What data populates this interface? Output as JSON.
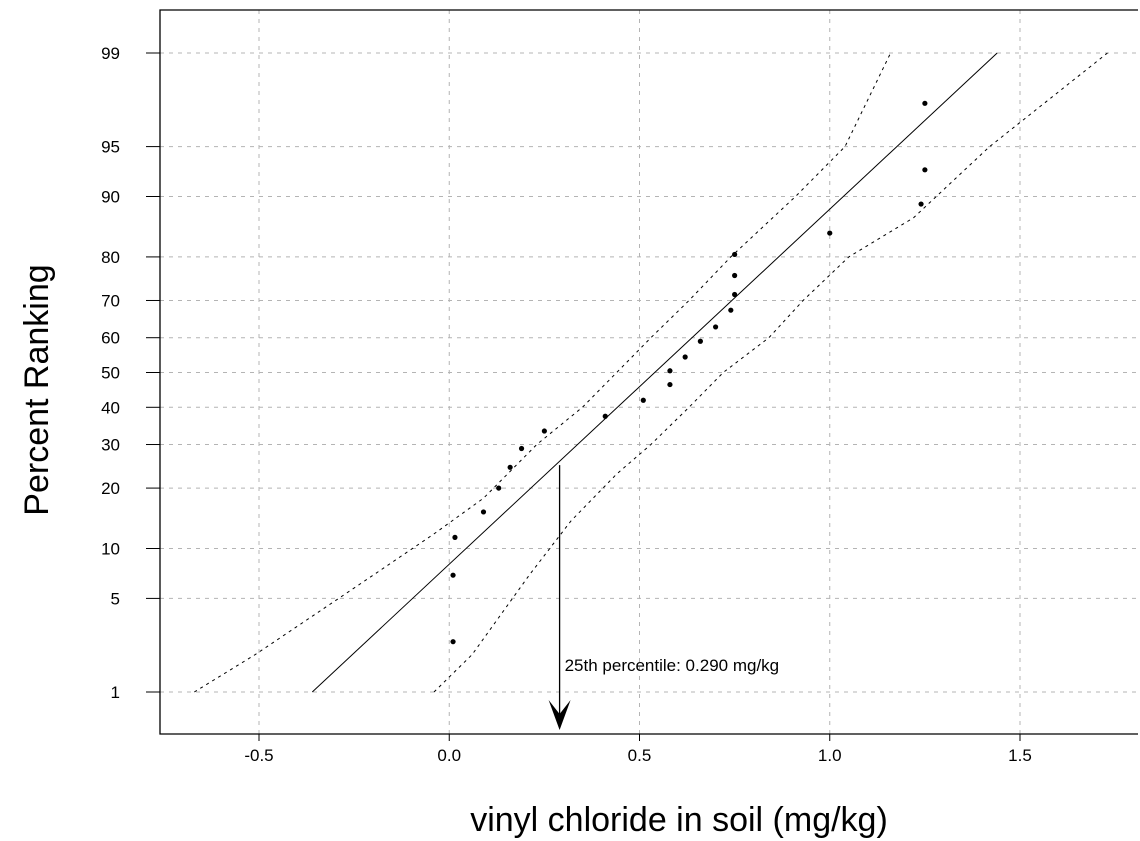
{
  "chart_data": {
    "type": "scatter",
    "title": "",
    "xlabel": "vinyl chloride in soil (mg/kg)",
    "ylabel": "Percent Ranking",
    "x_scale": "linear",
    "y_scale": "normal-probability",
    "xlim": [
      -0.78,
      1.8
    ],
    "ylim": [
      0.5,
      99.5
    ],
    "x_ticks": [
      -0.5,
      0.0,
      0.5,
      1.0,
      1.5
    ],
    "x_tick_labels": [
      "-0.5",
      "0.0",
      "0.5",
      "1.0",
      "1.5"
    ],
    "y_ticks": [
      1,
      5,
      10,
      20,
      30,
      40,
      50,
      60,
      70,
      80,
      90,
      95,
      99
    ],
    "y_tick_labels": [
      "1",
      "5",
      "10",
      "20",
      "30",
      "40",
      "50",
      "60",
      "70",
      "80",
      "90",
      "95",
      "99"
    ],
    "grid": true,
    "points": [
      {
        "x": 0.01,
        "y": 2.5
      },
      {
        "x": 0.01,
        "y": 7.0
      },
      {
        "x": 0.015,
        "y": 11.5
      },
      {
        "x": 0.09,
        "y": 15.5
      },
      {
        "x": 0.13,
        "y": 20.0
      },
      {
        "x": 0.16,
        "y": 24.5
      },
      {
        "x": 0.19,
        "y": 29.0
      },
      {
        "x": 0.25,
        "y": 33.5
      },
      {
        "x": 0.41,
        "y": 37.5
      },
      {
        "x": 0.51,
        "y": 42.0
      },
      {
        "x": 0.58,
        "y": 46.5
      },
      {
        "x": 0.58,
        "y": 50.5
      },
      {
        "x": 0.62,
        "y": 54.5
      },
      {
        "x": 0.66,
        "y": 59.0
      },
      {
        "x": 0.7,
        "y": 63.0
      },
      {
        "x": 0.74,
        "y": 67.5
      },
      {
        "x": 0.75,
        "y": 71.5
      },
      {
        "x": 0.75,
        "y": 76.0
      },
      {
        "x": 0.75,
        "y": 80.5
      },
      {
        "x": 1.0,
        "y": 84.5
      },
      {
        "x": 1.24,
        "y": 89.0
      },
      {
        "x": 1.25,
        "y": 93.0
      },
      {
        "x": 1.25,
        "y": 97.5
      }
    ],
    "fit_line": [
      {
        "x": -0.36,
        "y": 1
      },
      {
        "x": 1.44,
        "y": 99
      }
    ],
    "confidence_upper": [
      {
        "x": -0.67,
        "y": 1
      },
      {
        "x": -0.51,
        "y": 2
      },
      {
        "x": -0.36,
        "y": 3.8
      },
      {
        "x": -0.2,
        "y": 7
      },
      {
        "x": -0.04,
        "y": 12
      },
      {
        "x": 0.09,
        "y": 18
      },
      {
        "x": 0.23,
        "y": 30
      },
      {
        "x": 0.35,
        "y": 40
      },
      {
        "x": 0.44,
        "y": 50
      },
      {
        "x": 0.53,
        "y": 60
      },
      {
        "x": 0.63,
        "y": 70
      },
      {
        "x": 0.74,
        "y": 80
      },
      {
        "x": 0.91,
        "y": 90
      },
      {
        "x": 1.04,
        "y": 95
      },
      {
        "x": 1.16,
        "y": 99
      }
    ],
    "confidence_lower": [
      {
        "x": -0.04,
        "y": 1
      },
      {
        "x": 0.06,
        "y": 2
      },
      {
        "x": 0.21,
        "y": 7
      },
      {
        "x": 0.32,
        "y": 14
      },
      {
        "x": 0.44,
        "y": 23
      },
      {
        "x": 0.53,
        "y": 30
      },
      {
        "x": 0.63,
        "y": 40
      },
      {
        "x": 0.72,
        "y": 50
      },
      {
        "x": 0.84,
        "y": 60
      },
      {
        "x": 0.93,
        "y": 70
      },
      {
        "x": 1.05,
        "y": 80
      },
      {
        "x": 1.22,
        "y": 87
      },
      {
        "x": 1.42,
        "y": 95
      },
      {
        "x": 1.73,
        "y": 99
      }
    ],
    "annotation": {
      "text": "25th percentile: 0.290 mg/kg",
      "x": 0.29,
      "y": 25
    }
  }
}
